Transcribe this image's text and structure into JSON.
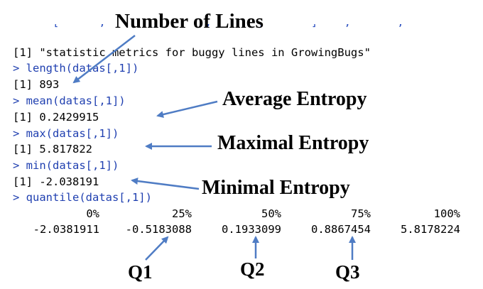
{
  "console": {
    "cut_line": "      [      ,       ,       ,       ,       ]    ,       ,       ",
    "lines": [
      {
        "text": "[1] \"statistic metrics for buggy lines in GrowingBugs\"",
        "kind": "output"
      },
      {
        "text": "> length(datas[,1])",
        "kind": "command"
      },
      {
        "text": "[1] 893",
        "kind": "output"
      },
      {
        "text": "> mean(datas[,1])",
        "kind": "command"
      },
      {
        "text": "[1] 0.2429915",
        "kind": "output"
      },
      {
        "text": "> max(datas[,1])",
        "kind": "command"
      },
      {
        "text": "[1] 5.817822",
        "kind": "output"
      },
      {
        "text": "> min(datas[,1])",
        "kind": "command"
      },
      {
        "text": "[1] -2.038191",
        "kind": "output"
      },
      {
        "text": "> quantile(datas[,1])",
        "kind": "command"
      }
    ],
    "quantile_headers": [
      "0%",
      "25%",
      "50%",
      "75%",
      "100%"
    ],
    "quantile_values": [
      "-2.0381911",
      "-0.5183088",
      "0.1933099",
      "0.8867454",
      "5.8178224"
    ]
  },
  "annotations": {
    "number_of_lines": "Number of Lines",
    "average_entropy": "Average Entropy",
    "maximal_entropy": "Maximal Entropy",
    "minimal_entropy": "Minimal Entropy",
    "q1": "Q1",
    "q2": "Q2",
    "q3": "Q3"
  },
  "colors": {
    "command": "#1f3fb0",
    "output": "#000000",
    "arrow": "#4f7cc4"
  }
}
